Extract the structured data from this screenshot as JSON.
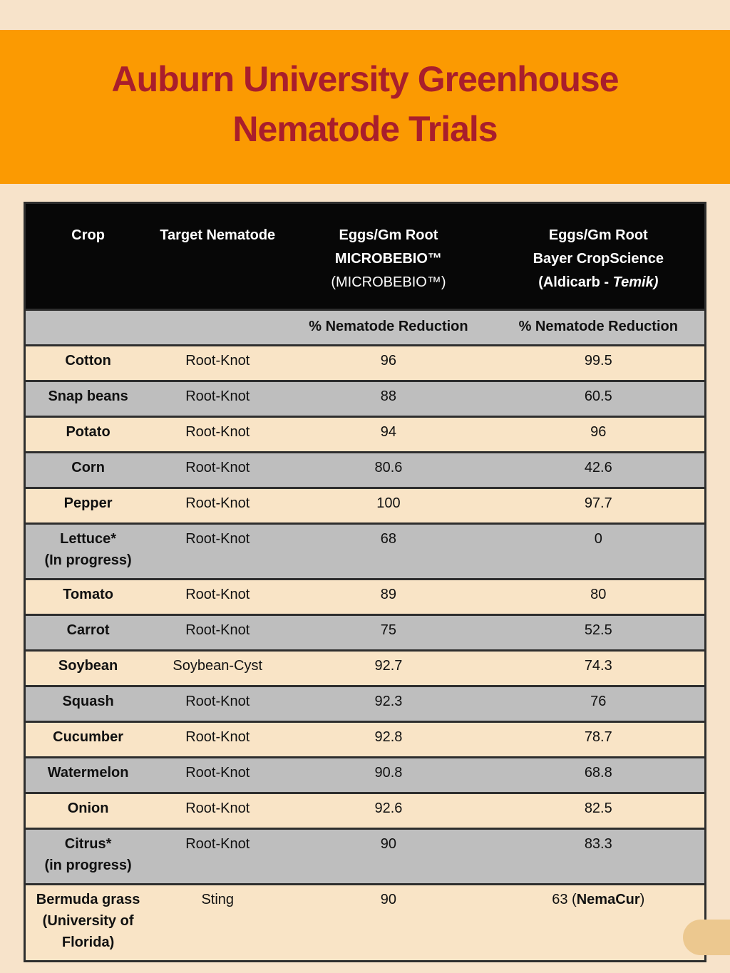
{
  "page": {
    "background_color": "#F7E3CA",
    "band_color": "#FB9A02",
    "title_color": "#A91E2C",
    "title_line1": "Auburn University Greenhouse",
    "title_line2": "Nematode Trials"
  },
  "table": {
    "header": {
      "col1": "Crop",
      "col2": "Target Nematode",
      "col3_line1": "Eggs/Gm Root",
      "col3_line2": "MICROBEBIO™",
      "col3_line3": "(MICROBEBIO™)",
      "col4_line1": "Eggs/Gm Root",
      "col4_line2": "Bayer CropScience",
      "col4_line3_prefix": "(Aldicarb - ",
      "col4_line3_italic": "Temik)"
    },
    "subheader": {
      "col3": "% Nematode Reduction",
      "col4": "% Nematode Reduction"
    },
    "rows": [
      {
        "crop": [
          "Cotton"
        ],
        "nematode": "Root-Knot",
        "microbebio": "96",
        "bayer": "99.5"
      },
      {
        "crop": [
          "Snap beans"
        ],
        "nematode": "Root-Knot",
        "microbebio": "88",
        "bayer": "60.5"
      },
      {
        "crop": [
          "Potato"
        ],
        "nematode": "Root-Knot",
        "microbebio": "94",
        "bayer": "96"
      },
      {
        "crop": [
          "Corn"
        ],
        "nematode": "Root-Knot",
        "microbebio": "80.6",
        "bayer": "42.6"
      },
      {
        "crop": [
          "Pepper"
        ],
        "nematode": "Root-Knot",
        "microbebio": "100",
        "bayer": "97.7"
      },
      {
        "crop": [
          "Lettuce*",
          "(In progress)"
        ],
        "nematode": "Root-Knot",
        "microbebio": "68",
        "bayer": "0"
      },
      {
        "crop": [
          "Tomato"
        ],
        "nematode": "Root-Knot",
        "microbebio": "89",
        "bayer": "80"
      },
      {
        "crop": [
          "Carrot"
        ],
        "nematode": "Root-Knot",
        "microbebio": "75",
        "bayer": "52.5"
      },
      {
        "crop": [
          "Soybean"
        ],
        "nematode": "Soybean-Cyst",
        "microbebio": "92.7",
        "bayer": "74.3"
      },
      {
        "crop": [
          "Squash"
        ],
        "nematode": "Root-Knot",
        "microbebio": "92.3",
        "bayer": "76"
      },
      {
        "crop": [
          "Cucumber"
        ],
        "nematode": "Root-Knot",
        "microbebio": "92.8",
        "bayer": "78.7"
      },
      {
        "crop": [
          "Watermelon"
        ],
        "nematode": "Root-Knot",
        "microbebio": "90.8",
        "bayer": "68.8"
      },
      {
        "crop": [
          "Onion"
        ],
        "nematode": "Root-Knot",
        "microbebio": "92.6",
        "bayer": "82.5"
      },
      {
        "crop": [
          "Citrus*",
          "(in progress)"
        ],
        "nematode": "Root-Knot",
        "microbebio": "90",
        "bayer": "83.3"
      },
      {
        "crop": [
          "Bermuda grass",
          "(University of",
          "Florida)"
        ],
        "nematode": "Sting",
        "microbebio": "90",
        "bayer_prefix": "63 (",
        "bayer_bold": "NemaCur",
        "bayer_suffix": ")"
      }
    ]
  }
}
